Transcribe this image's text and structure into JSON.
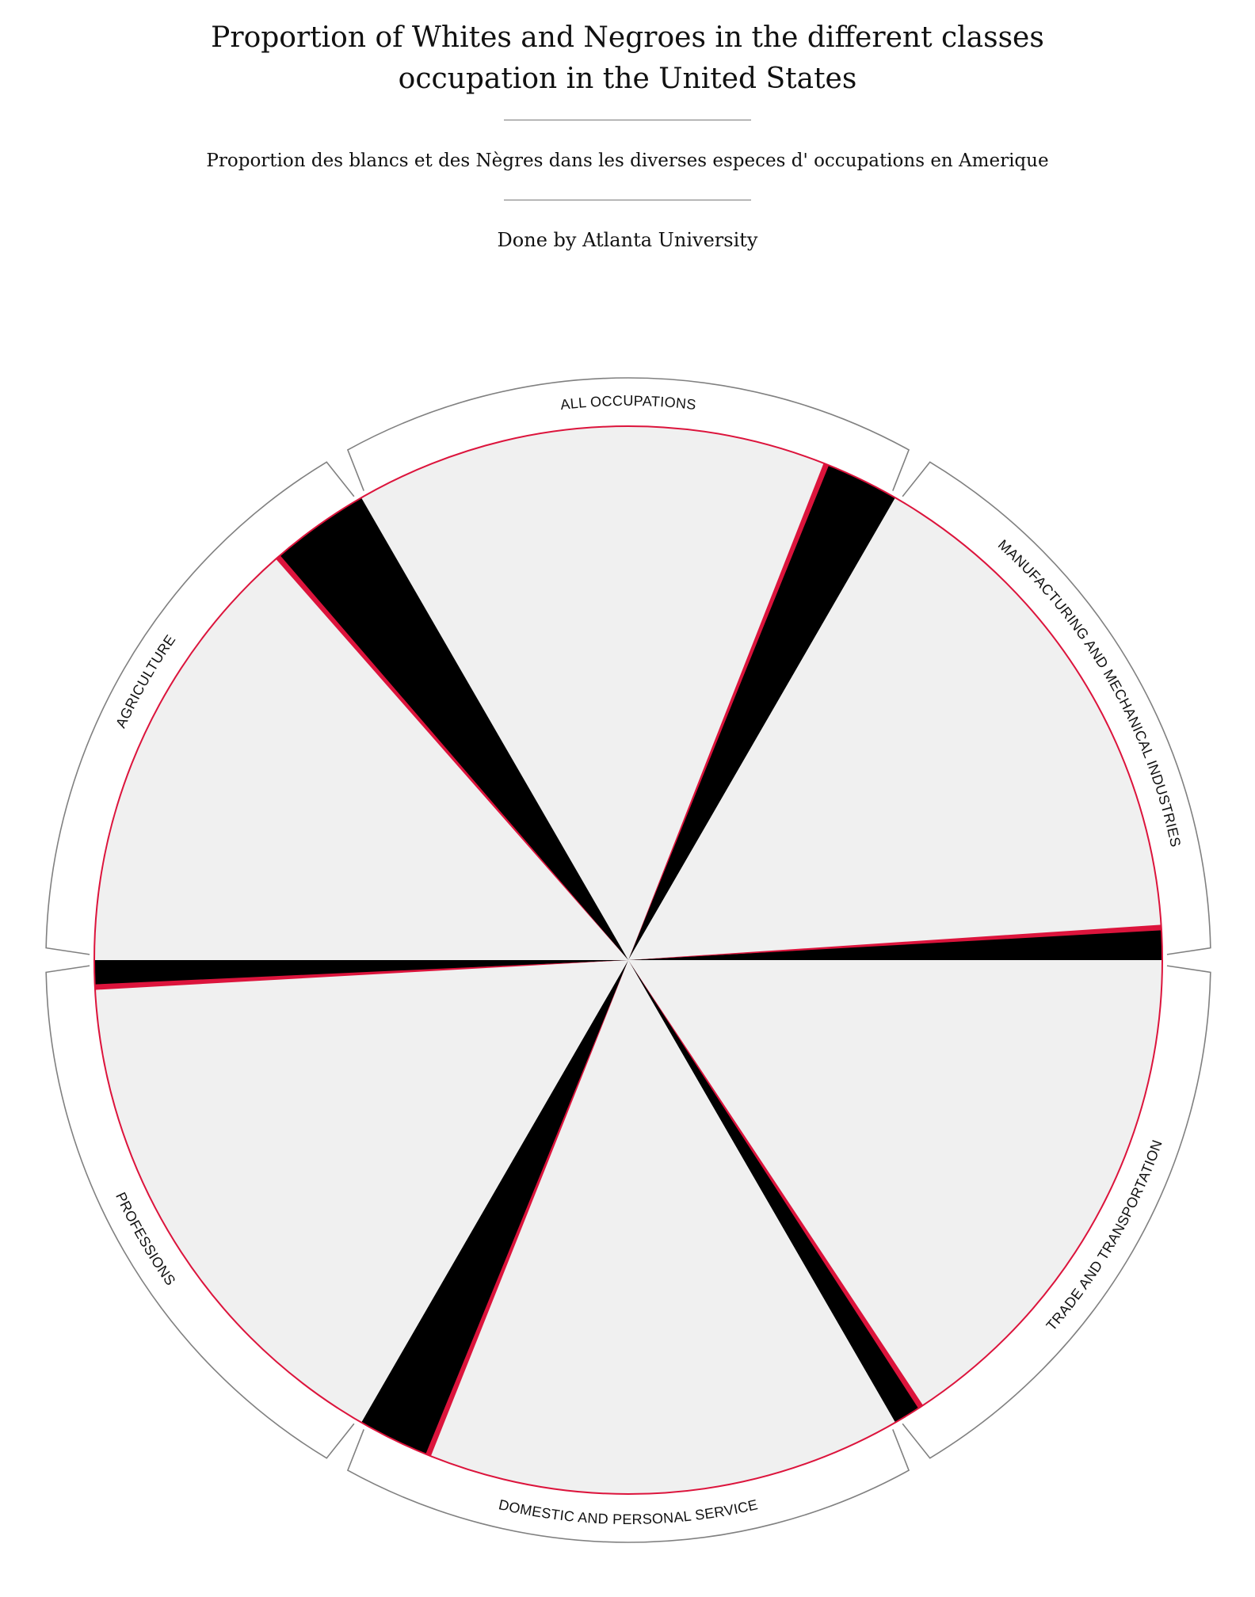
{
  "title": "Proportion of Whites and Negroes in the different classes occupation in the United States",
  "subtitle": "Proportion des blancs et des Nègres dans les diverses especes d' occupations en Amerique",
  "credit": "Done by Atlanta University",
  "chart_data": {
    "type": "pie",
    "categories": [
      "ALL OCCUPATIONS",
      "MANUFACTURING AND MECHANICAL INDUSTRIES",
      "TRADE AND TRANSPORTATION",
      "DOMESTIC AND PERSONAL SERVICE",
      "PROFESSIONS",
      "AGRICULTURE"
    ],
    "series": [
      {
        "values": [
          86.6,
          94.5,
          95.0,
          87.0,
          95.5,
          82.0
        ]
      },
      {
        "values": [
          13.4,
          5.5,
          5.0,
          13.0,
          4.5,
          18.0
        ]
      }
    ],
    "colors": {
      "white": "#f0f0f0",
      "negro": "#000000",
      "accent": "#dc143c",
      "bracket": "#808080"
    }
  }
}
